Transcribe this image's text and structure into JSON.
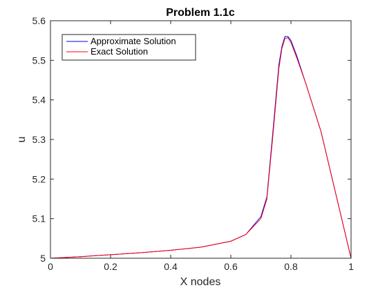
{
  "chart_data": {
    "type": "line",
    "title": "Problem 1.1c",
    "xlabel": "X nodes",
    "ylabel": "u",
    "xlim": [
      0,
      1
    ],
    "ylim": [
      5,
      5.6
    ],
    "xticks": [
      0,
      0.2,
      0.4,
      0.6,
      0.8,
      1
    ],
    "xtick_labels": [
      "0",
      "0.2",
      "0.4",
      "0.6",
      "0.8",
      "1"
    ],
    "yticks": [
      5,
      5.1,
      5.2,
      5.3,
      5.4,
      5.5,
      5.6
    ],
    "ytick_labels": [
      "5",
      "5.1",
      "5.2",
      "5.3",
      "5.4",
      "5.5",
      "5.6"
    ],
    "grid": false,
    "legend_position": "top-left",
    "series": [
      {
        "name": "Approximate Solution",
        "color": "#0000ff",
        "x": [
          0,
          0.1,
          0.2,
          0.3,
          0.4,
          0.5,
          0.6,
          0.65,
          0.7,
          0.72,
          0.74,
          0.76,
          0.77,
          0.78,
          0.79,
          0.8,
          0.82,
          0.85,
          0.9,
          1.0
        ],
        "y": [
          5.0,
          5.004,
          5.009,
          5.014,
          5.02,
          5.028,
          5.043,
          5.06,
          5.105,
          5.155,
          5.32,
          5.49,
          5.535,
          5.56,
          5.56,
          5.55,
          5.51,
          5.44,
          5.32,
          5.0
        ]
      },
      {
        "name": "Exact Solution",
        "color": "#ff0000",
        "x": [
          0,
          0.1,
          0.2,
          0.3,
          0.4,
          0.5,
          0.6,
          0.65,
          0.7,
          0.72,
          0.74,
          0.76,
          0.77,
          0.78,
          0.79,
          0.8,
          0.82,
          0.85,
          0.9,
          1.0
        ],
        "y": [
          5.0,
          5.004,
          5.009,
          5.014,
          5.02,
          5.028,
          5.043,
          5.06,
          5.1,
          5.15,
          5.31,
          5.48,
          5.53,
          5.555,
          5.557,
          5.545,
          5.505,
          5.44,
          5.32,
          5.0
        ]
      }
    ]
  }
}
